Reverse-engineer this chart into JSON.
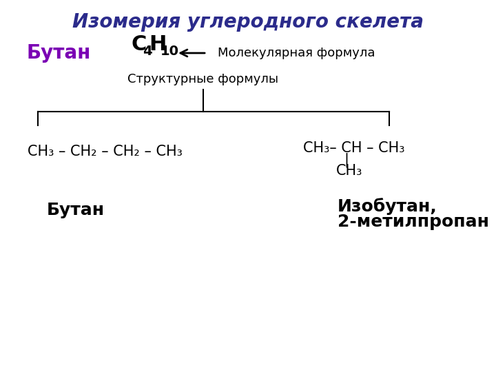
{
  "title": "Изомерия углеродного скелета",
  "title_color": "#2B2B8B",
  "title_fontsize": 20,
  "background_color": "#ffffff",
  "butan_label": "Бутан",
  "butan_color": "#7B00B4",
  "butan_fontsize": 20,
  "mol_formula_fontsize": 22,
  "mol_formula_color": "#000000",
  "arrow_label": "Молекулярная формула",
  "arrow_fontsize": 13,
  "struct_label": "Структурные формулы",
  "struct_fontsize": 13,
  "formula1": "CH₃ – CH₂ – CH₂ – CH₃",
  "formula1_fontsize": 15,
  "formula2_line1": "CH₃– CH – CH₃",
  "formula2_line2": "CH₃",
  "formula2_fontsize": 15,
  "name1": "Бутан",
  "name1_color": "#000000",
  "name1_fontsize": 18,
  "name2_line1": "Изобутан,",
  "name2_line2": "2-метилпропан",
  "name2_color": "#000000",
  "name2_fontsize": 18,
  "line_color": "#000000"
}
